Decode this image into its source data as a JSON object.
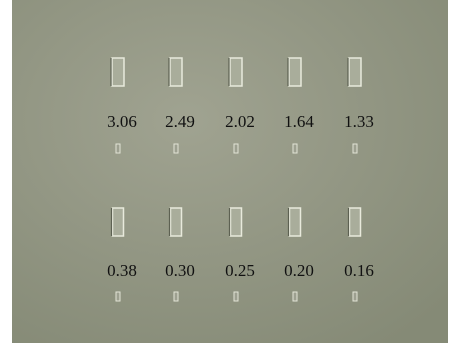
{
  "rows": [
    [
      "3.06",
      "2.49",
      "2.02",
      "1.64",
      "1.33"
    ],
    [
      "0.38",
      "0.30",
      "0.25",
      "0.20",
      "0.16"
    ]
  ]
}
